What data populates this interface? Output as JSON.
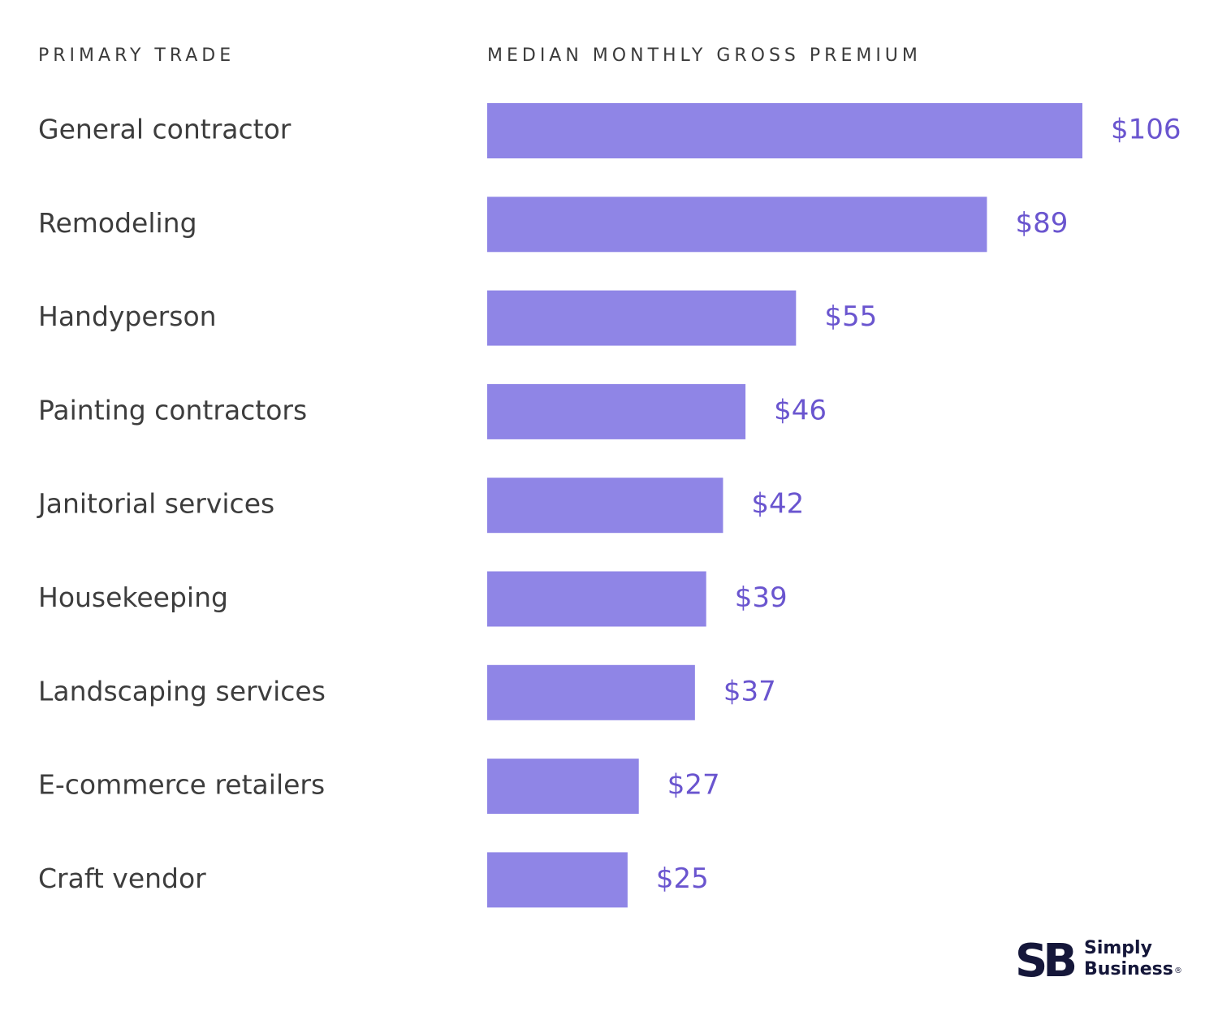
{
  "headers": {
    "left": "PRIMARY TRADE",
    "right": "MEDIAN MONTHLY GROSS PREMIUM"
  },
  "chart_data": {
    "type": "bar",
    "orientation": "horizontal",
    "categories": [
      "General contractor",
      "Remodeling",
      "Handyperson",
      "Painting contractors",
      "Janitorial services",
      "Housekeeping",
      "Landscaping services",
      "E-commerce retailers",
      "Craft vendor"
    ],
    "values": [
      106,
      89,
      55,
      46,
      42,
      39,
      37,
      27,
      25
    ],
    "value_labels": [
      "$106",
      "$89",
      "$55",
      "$46",
      "$42",
      "$39",
      "$37",
      "$27",
      "$25"
    ],
    "xlim": [
      0,
      106
    ],
    "grid": false,
    "bar_color": "#8f85e6",
    "label_color": "#6a55cf"
  },
  "logo": {
    "mark": "SB",
    "line1": "Simply",
    "line2": "Business",
    "reg": "®"
  }
}
